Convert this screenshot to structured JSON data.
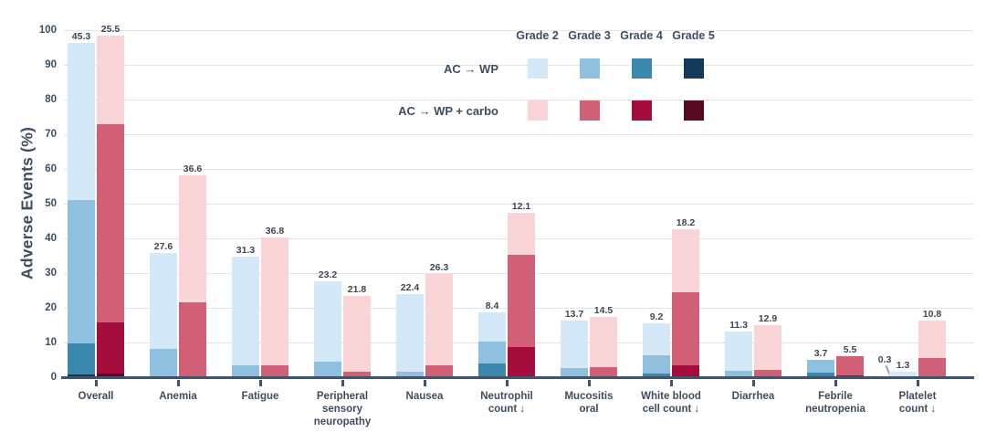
{
  "chart_data": {
    "type": "bar",
    "stacked": true,
    "title": "",
    "ylabel": "Adverse Events (%)",
    "xlabel": "",
    "ylim": [
      0,
      100
    ],
    "yticks": [
      0,
      10,
      20,
      30,
      40,
      50,
      60,
      70,
      80,
      90,
      100
    ],
    "grid": true,
    "legend_position": "top-right",
    "grade_headers": [
      "Grade 2",
      "Grade 3",
      "Grade 4",
      "Grade 5"
    ],
    "groups": [
      {
        "name": "AC → WP",
        "colors": {
          "Grade 2": "#d5e8f7",
          "Grade 3": "#8fc0e0",
          "Grade 4": "#3c88ac",
          "Grade 5": "#13395b"
        }
      },
      {
        "name": "AC → WP + carbo",
        "colors": {
          "Grade 2": "#f9d5d8",
          "Grade 3": "#d16076",
          "Grade 4": "#a50d3c",
          "Grade 5": "#570a22"
        }
      }
    ],
    "categories": [
      {
        "label": "Overall",
        "bars": [
          {
            "group": "AC → WP",
            "segments": [
              {
                "grade": "Grade 5",
                "value": 0.8,
                "label_color": "#ffffff"
              },
              {
                "grade": "Grade 4",
                "value": 8.9
              },
              {
                "grade": "Grade 3",
                "value": 41.3
              },
              {
                "grade": "Grade 2",
                "value": 45.3
              }
            ]
          },
          {
            "group": "AC → WP + carbo",
            "segments": [
              {
                "grade": "Grade 5",
                "value": 1.1,
                "label_color": "#ffffff"
              },
              {
                "grade": "Grade 4",
                "value": 14.7
              },
              {
                "grade": "Grade 3",
                "value": 57.1
              },
              {
                "grade": "Grade 2",
                "value": 25.5
              }
            ]
          }
        ]
      },
      {
        "label": "Anemia",
        "bars": [
          {
            "group": "AC → WP",
            "segments": [
              {
                "grade": "Grade 3",
                "value": 8.2
              },
              {
                "grade": "Grade 2",
                "value": 27.6
              }
            ]
          },
          {
            "group": "AC → WP + carbo",
            "segments": [
              {
                "grade": "Grade 3",
                "value": 21.6
              },
              {
                "grade": "Grade 2",
                "value": 36.6
              }
            ]
          }
        ]
      },
      {
        "label": "Fatigue",
        "bars": [
          {
            "group": "AC → WP",
            "segments": [
              {
                "grade": "Grade 3",
                "value": 3.4
              },
              {
                "grade": "Grade 2",
                "value": 31.3
              }
            ]
          },
          {
            "group": "AC → WP + carbo",
            "segments": [
              {
                "grade": "Grade 3",
                "value": 3.4
              },
              {
                "grade": "Grade 2",
                "value": 36.8
              }
            ]
          }
        ]
      },
      {
        "label": "Peripheral\nsensory\nneuropathy",
        "bars": [
          {
            "group": "AC → WP",
            "segments": [
              {
                "grade": "Grade 3",
                "value": 4.5
              },
              {
                "grade": "Grade 2",
                "value": 23.2
              }
            ]
          },
          {
            "group": "AC → WP + carbo",
            "segments": [
              {
                "grade": "Grade 3",
                "value": 1.6
              },
              {
                "grade": "Grade 2",
                "value": 21.8
              }
            ]
          }
        ]
      },
      {
        "label": "Nausea",
        "bars": [
          {
            "group": "AC → WP",
            "segments": [
              {
                "grade": "Grade 3",
                "value": 1.6
              },
              {
                "grade": "Grade 2",
                "value": 22.4
              }
            ]
          },
          {
            "group": "AC → WP + carbo",
            "segments": [
              {
                "grade": "Grade 3",
                "value": 3.4
              },
              {
                "grade": "Grade 2",
                "value": 26.3
              }
            ]
          }
        ]
      },
      {
        "label": "Neutrophil\ncount ↓",
        "bars": [
          {
            "group": "AC → WP",
            "segments": [
              {
                "grade": "Grade 4",
                "value": 3.9
              },
              {
                "grade": "Grade 3",
                "value": 6.3
              },
              {
                "grade": "Grade 2",
                "value": 8.4
              }
            ]
          },
          {
            "group": "AC → WP + carbo",
            "segments": [
              {
                "grade": "Grade 4",
                "value": 8.7
              },
              {
                "grade": "Grade 3",
                "value": 26.6
              },
              {
                "grade": "Grade 2",
                "value": 12.1
              }
            ]
          }
        ]
      },
      {
        "label": "Mucositis\noral",
        "bars": [
          {
            "group": "AC → WP",
            "segments": [
              {
                "grade": "Grade 3",
                "value": 2.6
              },
              {
                "grade": "Grade 2",
                "value": 13.7
              }
            ]
          },
          {
            "group": "AC → WP + carbo",
            "segments": [
              {
                "grade": "Grade 3",
                "value": 2.9
              },
              {
                "grade": "Grade 2",
                "value": 14.5
              }
            ]
          }
        ]
      },
      {
        "label": "White blood\ncell count ↓",
        "bars": [
          {
            "group": "AC → WP",
            "segments": [
              {
                "grade": "Grade 4",
                "value": 1.1
              },
              {
                "grade": "Grade 3",
                "value": 5.3
              },
              {
                "grade": "Grade 2",
                "value": 9.2
              }
            ]
          },
          {
            "group": "AC → WP + carbo",
            "segments": [
              {
                "grade": "Grade 4",
                "value": 3.4
              },
              {
                "grade": "Grade 3",
                "value": 21.1
              },
              {
                "grade": "Grade 2",
                "value": 18.2
              }
            ]
          }
        ]
      },
      {
        "label": "Diarrhea",
        "bars": [
          {
            "group": "AC → WP",
            "segments": [
              {
                "grade": "Grade 3",
                "value": 1.8
              },
              {
                "grade": "Grade 2",
                "value": 11.3
              }
            ]
          },
          {
            "group": "AC → WP + carbo",
            "segments": [
              {
                "grade": "Grade 3",
                "value": 2.1
              },
              {
                "grade": "Grade 2",
                "value": 12.9
              }
            ]
          }
        ]
      },
      {
        "label": "Febrile\nneutropenia",
        "bars": [
          {
            "group": "AC → WP",
            "segments": [
              {
                "grade": "Grade 4",
                "value": 1.3
              },
              {
                "grade": "Grade 3",
                "value": 3.7
              }
            ]
          },
          {
            "group": "AC → WP + carbo",
            "segments": [
              {
                "grade": "Grade 4",
                "value": 0.5,
                "label_color": "#8f1031"
              },
              {
                "grade": "Grade 3",
                "value": 5.5
              }
            ]
          }
        ]
      },
      {
        "label": "Platelet\ncount ↓",
        "bars": [
          {
            "group": "AC → WP",
            "segments": [
              {
                "grade": "Grade 3",
                "value": 0.3,
                "leader": true
              },
              {
                "grade": "Grade 2",
                "value": 1.3
              }
            ]
          },
          {
            "group": "AC → WP + carbo",
            "segments": [
              {
                "grade": "Grade 3",
                "value": 5.5
              },
              {
                "grade": "Grade 2",
                "value": 10.8
              }
            ]
          }
        ]
      }
    ]
  }
}
